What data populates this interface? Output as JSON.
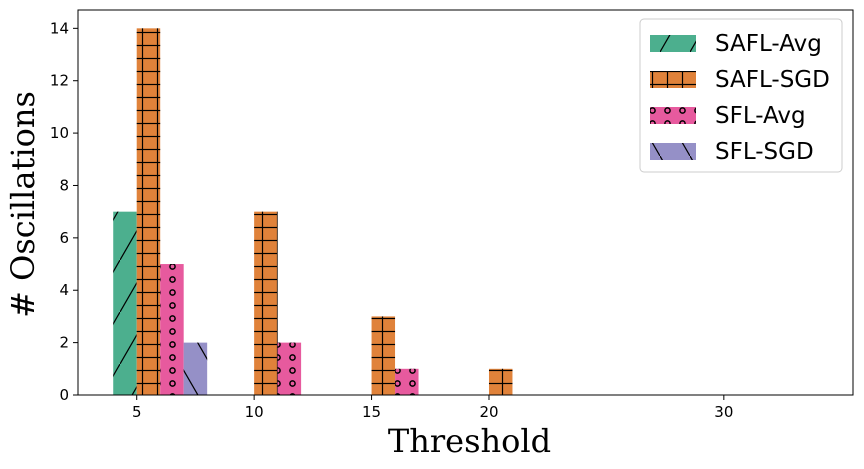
{
  "chart_data": {
    "type": "bar",
    "title": "",
    "xlabel": "Threshold",
    "ylabel": "# Oscillations",
    "ylim": [
      0,
      14.7
    ],
    "xlim": [
      2.5,
      35.5
    ],
    "xticks": [
      5,
      10,
      15,
      20,
      30
    ],
    "yticks": [
      0,
      2,
      4,
      6,
      8,
      10,
      12,
      14
    ],
    "bar_width": 1,
    "legend_position": "top-right",
    "series": [
      {
        "name": "SAFL-Avg",
        "color": "#4CAF8E",
        "pattern": "slash",
        "points": [
          {
            "x": 4.5,
            "y": 7
          }
        ]
      },
      {
        "name": "SAFL-SGD",
        "color": "#E0823A",
        "pattern": "grid",
        "points": [
          {
            "x": 5.5,
            "y": 14
          },
          {
            "x": 10.5,
            "y": 7
          },
          {
            "x": 15.5,
            "y": 3
          },
          {
            "x": 20.5,
            "y": 1
          }
        ]
      },
      {
        "name": "SFL-Avg",
        "color": "#E75A9E",
        "pattern": "circles",
        "points": [
          {
            "x": 6.5,
            "y": 5
          },
          {
            "x": 11.5,
            "y": 2
          },
          {
            "x": 16.5,
            "y": 1
          }
        ]
      },
      {
        "name": "SFL-SGD",
        "color": "#9590C7",
        "pattern": "backslash",
        "points": [
          {
            "x": 7.5,
            "y": 2
          }
        ]
      }
    ]
  }
}
